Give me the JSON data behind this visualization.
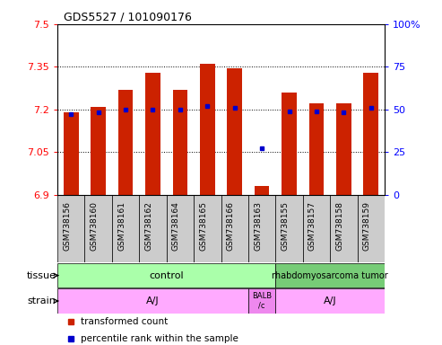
{
  "title": "GDS5527 / 101090176",
  "samples": [
    "GSM738156",
    "GSM738160",
    "GSM738161",
    "GSM738162",
    "GSM738164",
    "GSM738165",
    "GSM738166",
    "GSM738163",
    "GSM738155",
    "GSM738157",
    "GSM738158",
    "GSM738159"
  ],
  "bar_values": [
    7.19,
    7.21,
    7.27,
    7.33,
    7.27,
    7.36,
    7.345,
    6.93,
    7.26,
    7.22,
    7.22,
    7.33
  ],
  "percentile_values": [
    47,
    48,
    50,
    50,
    50,
    52,
    51,
    27,
    49,
    49,
    48,
    51
  ],
  "ymin": 6.9,
  "ymax": 7.5,
  "yticks": [
    6.9,
    7.05,
    7.2,
    7.35,
    7.5
  ],
  "right_yticks": [
    0,
    25,
    50,
    75,
    100
  ],
  "bar_color": "#cc2200",
  "percentile_color": "#0000cc",
  "bar_bottom": 6.9,
  "xticklabel_bg": "#cccccc",
  "control_color": "#aaffaa",
  "tumor_color": "#77cc77",
  "strain_aj_color": "#ffaaff",
  "strain_balb_color": "#ee88ee",
  "fig_width": 4.93,
  "fig_height": 3.84,
  "dpi": 100
}
